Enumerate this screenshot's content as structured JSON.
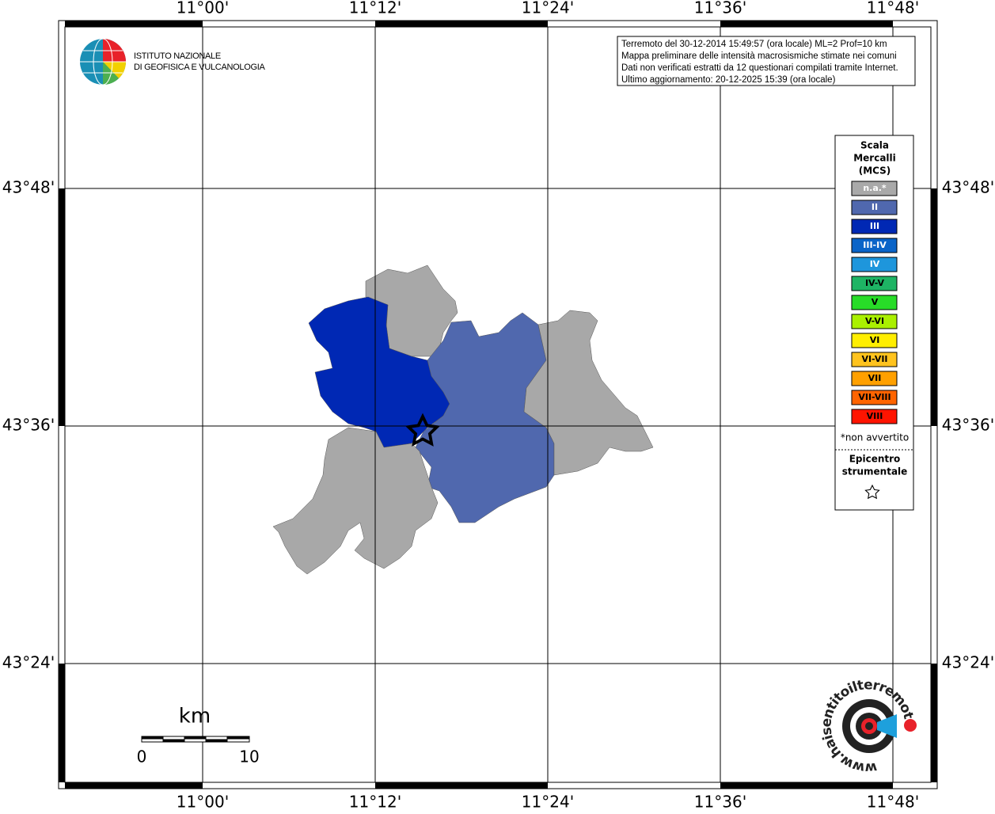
{
  "header": {
    "logo_lines": [
      "ISTITUTO NAZIONALE",
      "DI GEOFISICA E VULCANOLOGIA"
    ]
  },
  "info": {
    "lines": [
      "Terremoto del 30-12-2014 15:49:57 (ora locale) ML=2 Prof=10 km",
      "Mappa preliminare delle intensità macrosismiche stimate nei comuni",
      "Dati non verificati estratti da 12 questionari compilati tramite Internet.",
      "Ultimo aggiornamento: 20-12-2025 15:39 (ora locale)"
    ]
  },
  "map": {
    "lon_labels": [
      "11°00'",
      "11°12'",
      "11°24'",
      "11°36'",
      "11°48'"
    ],
    "lat_labels": [
      "43°48'",
      "43°36'",
      "43°24'"
    ]
  },
  "legend": {
    "title_lines": [
      "Scala",
      "Mercalli",
      "(MCS)"
    ],
    "items": [
      {
        "label": "n.a.*",
        "color": "#a9a9a9",
        "text_color": "#ffffff"
      },
      {
        "label": "II",
        "color": "#5068ae",
        "text_color": "#ffffff"
      },
      {
        "label": "III",
        "color": "#0028b4",
        "text_color": "#ffffff"
      },
      {
        "label": "III-IV",
        "color": "#0a64c8",
        "text_color": "#ffffff"
      },
      {
        "label": "IV",
        "color": "#1e96dc",
        "text_color": "#ffffff"
      },
      {
        "label": "IV-V",
        "color": "#1eb464",
        "text_color": "#000000"
      },
      {
        "label": "V",
        "color": "#28dc28",
        "text_color": "#000000"
      },
      {
        "label": "V-VI",
        "color": "#aaf000",
        "text_color": "#000000"
      },
      {
        "label": "VI",
        "color": "#ffee00",
        "text_color": "#000000"
      },
      {
        "label": "VI-VII",
        "color": "#ffc31e",
        "text_color": "#000000"
      },
      {
        "label": "VII",
        "color": "#ffa000",
        "text_color": "#000000"
      },
      {
        "label": "VII-VIII",
        "color": "#ff6400",
        "text_color": "#000000"
      },
      {
        "label": "VIII",
        "color": "#ff1400",
        "text_color": "#000000"
      }
    ],
    "footnote": "*non avvertito",
    "epicenter_lines": [
      "Epicentro",
      "strumentale"
    ]
  },
  "scale_bar": {
    "unit": "km",
    "ticks": [
      0,
      10
    ]
  },
  "footer_logo": {
    "url": "www.haisentitoilterremoto.it"
  }
}
